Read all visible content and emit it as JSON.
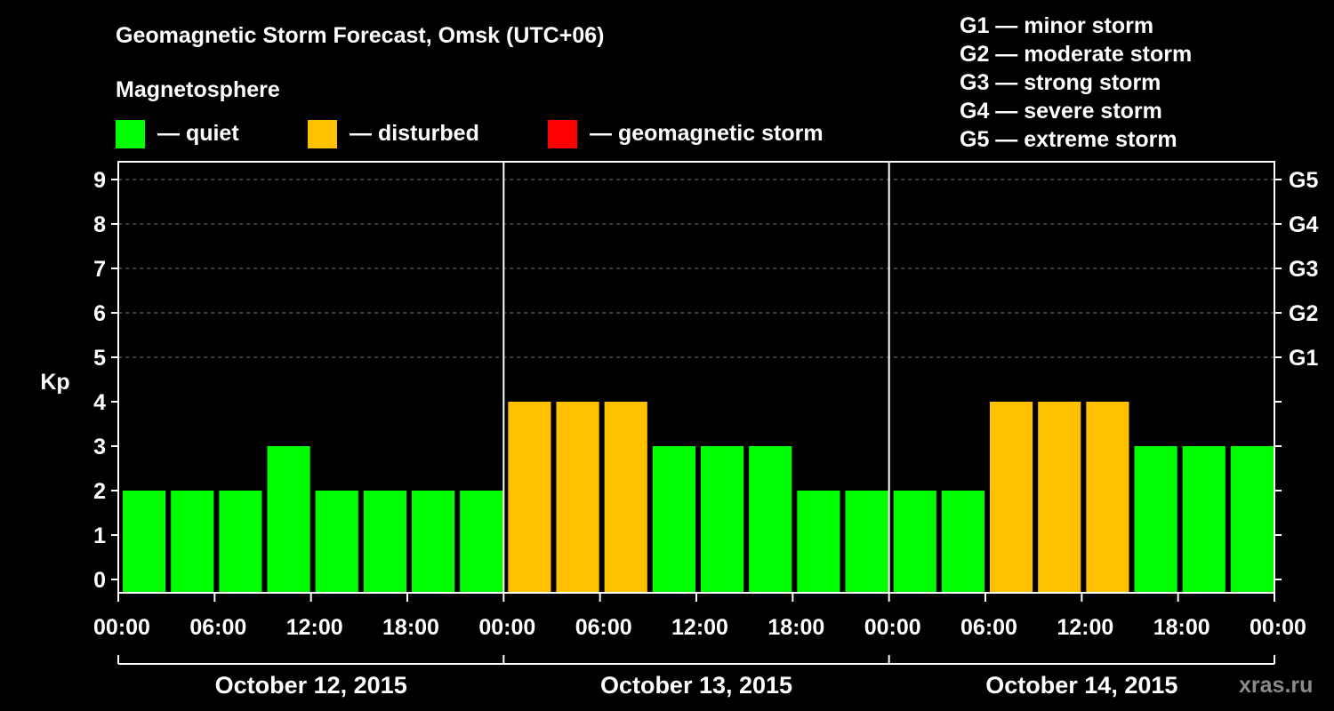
{
  "chart_data": {
    "type": "bar",
    "title": "Geomagnetic Storm Forecast, Omsk (UTC+06)",
    "legend_title": "Magnetosphere",
    "legend": [
      {
        "label": "— quiet",
        "color": "#00ff00"
      },
      {
        "label": "— disturbed",
        "color": "#ffc000"
      },
      {
        "label": "— geomagnetic storm",
        "color": "#ff0000"
      }
    ],
    "scale": [
      "G1 — minor storm",
      "G2 — moderate storm",
      "G3 — strong storm",
      "G4 — severe storm",
      "G5 — extreme storm"
    ],
    "ylabel": "Kp",
    "ylim": [
      0,
      9
    ],
    "y_ticks": [
      0,
      1,
      2,
      3,
      4,
      5,
      6,
      7,
      8,
      9
    ],
    "right_labels": [
      {
        "kp": 5,
        "label": "G1"
      },
      {
        "kp": 6,
        "label": "G2"
      },
      {
        "kp": 7,
        "label": "G3"
      },
      {
        "kp": 8,
        "label": "G4"
      },
      {
        "kp": 9,
        "label": "G5"
      }
    ],
    "x_ticks": [
      "00:00",
      "06:00",
      "12:00",
      "18:00",
      "00:00",
      "06:00",
      "12:00",
      "18:00",
      "00:00",
      "06:00",
      "12:00",
      "18:00",
      "00:00"
    ],
    "days": [
      "October 12, 2015",
      "October 13, 2015",
      "October 14, 2015"
    ],
    "values": [
      2,
      2,
      2,
      3,
      2,
      2,
      2,
      2,
      4,
      4,
      4,
      3,
      3,
      3,
      2,
      2,
      2,
      2,
      4,
      4,
      4,
      3,
      3,
      3
    ],
    "bar_colors": {
      "quiet": "#00ff00",
      "disturbed": "#ffc000",
      "storm": "#ff0000"
    },
    "grid": true,
    "credit": "xras.ru"
  }
}
